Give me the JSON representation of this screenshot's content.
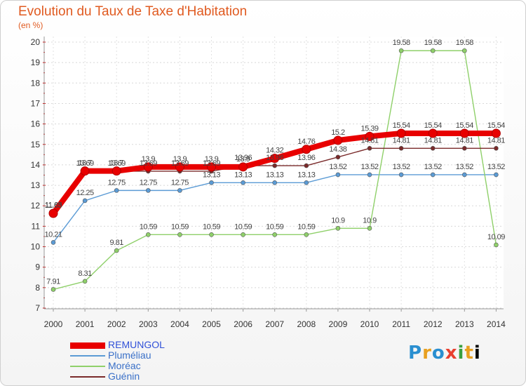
{
  "chart_data": {
    "type": "line",
    "title": "Evolution du Taux de Taxe d'Habitation",
    "ylabel": "(en %)",
    "xlabel": "",
    "x": [
      2000,
      2001,
      2002,
      2003,
      2004,
      2005,
      2006,
      2007,
      2008,
      2009,
      2010,
      2011,
      2012,
      2013,
      2014
    ],
    "ylim": [
      7,
      20
    ],
    "yticks": [
      7,
      8,
      9,
      10,
      11,
      12,
      13,
      14,
      15,
      16,
      17,
      18,
      19,
      20
    ],
    "grid": true,
    "legend_position": "bottom-left",
    "series": [
      {
        "name": "REMUNGOL",
        "color": "#e80000",
        "values": [
          11.63,
          13.7,
          13.7,
          13.9,
          13.9,
          13.9,
          13.9,
          14.32,
          14.76,
          15.2,
          15.39,
          15.54,
          15.54,
          15.54,
          15.54
        ],
        "labels": [
          "11.63",
          "13.7",
          "13.7",
          "13.9",
          "13.9",
          "13.9",
          "13.9",
          "14.32",
          "14.76",
          "15.2",
          "15.39",
          "15.54",
          "15.54",
          "15.54",
          "15.54"
        ]
      },
      {
        "name": "Pluméliau",
        "color": "#5b9bd5",
        "values": [
          10.21,
          12.25,
          12.75,
          12.75,
          12.75,
          13.13,
          13.13,
          13.13,
          13.13,
          13.52,
          13.52,
          13.52,
          13.52,
          13.52,
          13.52
        ],
        "labels": [
          "10.21",
          "12.25",
          "12.75",
          "12.75",
          "12.75",
          "13.13",
          "13.13",
          "13.13",
          "13.13",
          "13.52",
          "13.52",
          "13.52",
          "13.52",
          "13.52",
          "13.52"
        ]
      },
      {
        "name": "Moréac",
        "color": "#8fd06a",
        "values": [
          7.91,
          8.31,
          9.81,
          10.59,
          10.59,
          10.59,
          10.59,
          10.59,
          10.59,
          10.9,
          10.9,
          19.58,
          19.58,
          19.58,
          10.09
        ],
        "labels": [
          "7.91",
          "8.31",
          "9.81",
          "10.59",
          "10.59",
          "10.59",
          "10.59",
          "10.59",
          "10.59",
          "10.9",
          "10.9",
          "19.58",
          "19.58",
          "19.58",
          "10.09"
        ]
      },
      {
        "name": "Guénin",
        "color": "#7a2a2a",
        "values": [
          11.65,
          13.69,
          13.69,
          13.69,
          13.69,
          13.69,
          13.96,
          13.96,
          13.96,
          14.38,
          14.81,
          14.81,
          14.81,
          14.81,
          14.81
        ],
        "labels": [
          "11.65",
          "13.69",
          "13.69",
          "13.69",
          "13.69",
          "13.69",
          "13.96",
          "13.96",
          "13.96",
          "14.38",
          "14.81",
          "14.81",
          "14.81",
          "14.81",
          "14.81"
        ]
      }
    ]
  },
  "logo": {
    "letters": [
      "P",
      "r",
      "o",
      "x",
      "i",
      "t",
      "i"
    ]
  }
}
